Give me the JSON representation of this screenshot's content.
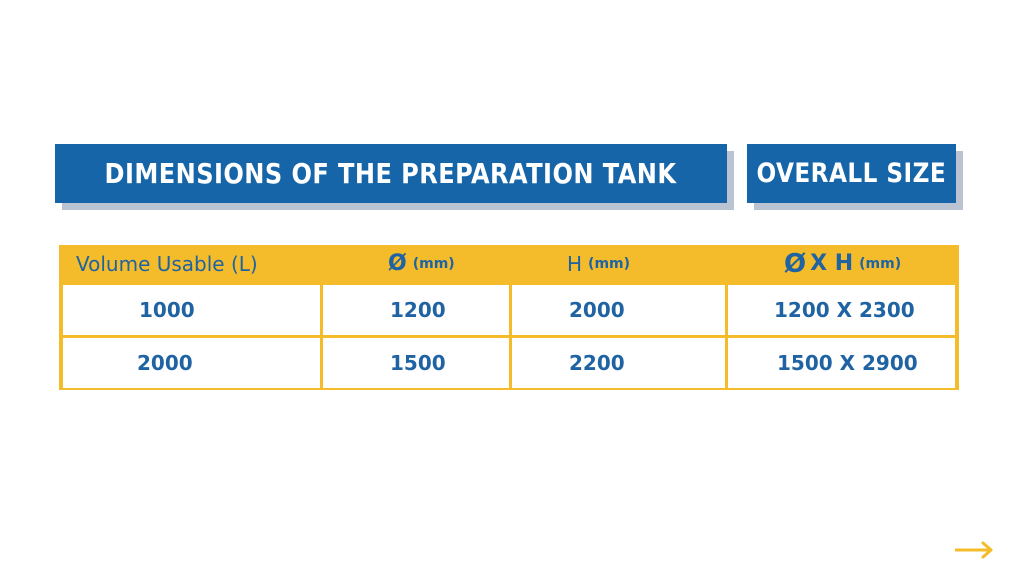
{
  "banners": {
    "title": "DIMENSIONS OF THE PREPARATION TANK",
    "overall_size": "OVERALL SIZE"
  },
  "table": {
    "headers": {
      "volume": "Volume Usable (L)",
      "diameter_symbol": "Ø",
      "diameter_unit": "(mm)",
      "height_symbol": "H",
      "height_unit": "(mm)",
      "overall_diameter_symbol": "Ø",
      "overall_x_h": "X H",
      "overall_unit": "(mm)"
    },
    "rows": [
      {
        "volume": "1000",
        "diameter": "1200",
        "height": "2000",
        "overall": "1200 X 2300"
      },
      {
        "volume": "2000",
        "diameter": "1500",
        "height": "2200",
        "overall": "1500 X 2900"
      }
    ]
  },
  "colors": {
    "brand_blue": "#1565a8",
    "text_blue": "#1f63a3",
    "accent_yellow": "#f4bc2a",
    "shadow_gray": "#b9c3d1"
  },
  "icons": {
    "next": "arrow-right-icon"
  }
}
